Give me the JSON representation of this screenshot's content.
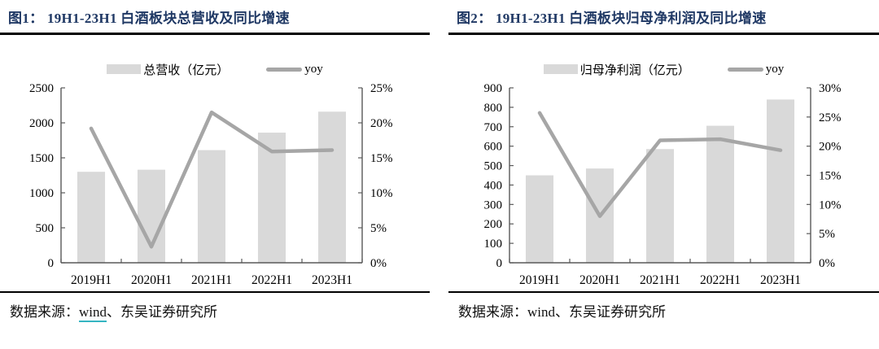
{
  "colors": {
    "title": "#1f3864",
    "bar_fill": "#d9d9d9",
    "line_stroke": "#a6a6a6",
    "axis": "#595959",
    "text": "#000000",
    "rule": "#000000",
    "wind_underline": "#35b4c1"
  },
  "chart_data": [
    {
      "type": "bar",
      "subtype": "bar+line combo, dual axis",
      "title": "图1： 19H1-23H1 白酒板块总营收及同比增速",
      "categories": [
        "2019H1",
        "2020H1",
        "2021H1",
        "2022H1",
        "2023H1"
      ],
      "series": [
        {
          "name": "总营收（亿元）",
          "type": "bar",
          "axis": "left",
          "values": [
            1300,
            1330,
            1610,
            1860,
            2160
          ]
        },
        {
          "name": "yoy",
          "type": "line",
          "axis": "right",
          "values": [
            19.2,
            2.3,
            21.5,
            15.9,
            16.1
          ]
        }
      ],
      "left_axis": {
        "min": 0,
        "max": 2500,
        "step": 500,
        "ticks": [
          "0",
          "500",
          "1000",
          "1500",
          "2000",
          "2500"
        ]
      },
      "right_axis": {
        "min": 0,
        "max": 25,
        "step": 5,
        "ticks": [
          "0%",
          "5%",
          "10%",
          "15%",
          "20%",
          "25%"
        ]
      },
      "legend_position": "top",
      "grid": false,
      "source": {
        "prefix": "数据来源：",
        "link": "wind",
        "suffix": "、东吴证券研究所"
      }
    },
    {
      "type": "bar",
      "subtype": "bar+line combo, dual axis",
      "title": "图2： 19H1-23H1 白酒板块归母净利润及同比增速",
      "categories": [
        "2019H1",
        "2020H1",
        "2021H1",
        "2022H1",
        "2023H1"
      ],
      "series": [
        {
          "name": "归母净利润（亿元）",
          "type": "bar",
          "axis": "left",
          "values": [
            450,
            485,
            585,
            705,
            840
          ]
        },
        {
          "name": "yoy",
          "type": "line",
          "axis": "right",
          "values": [
            25.7,
            8.0,
            21.0,
            21.2,
            19.3
          ]
        }
      ],
      "left_axis": {
        "min": 0,
        "max": 900,
        "step": 100,
        "ticks": [
          "0",
          "100",
          "200",
          "300",
          "400",
          "500",
          "600",
          "700",
          "800",
          "900"
        ]
      },
      "right_axis": {
        "min": 0,
        "max": 30,
        "step": 5,
        "ticks": [
          "0%",
          "5%",
          "10%",
          "15%",
          "20%",
          "25%",
          "30%"
        ]
      },
      "legend_position": "top",
      "grid": false,
      "source": {
        "prefix": "数据来源：",
        "link": "wind",
        "suffix": "、东吴证券研究所"
      }
    }
  ]
}
